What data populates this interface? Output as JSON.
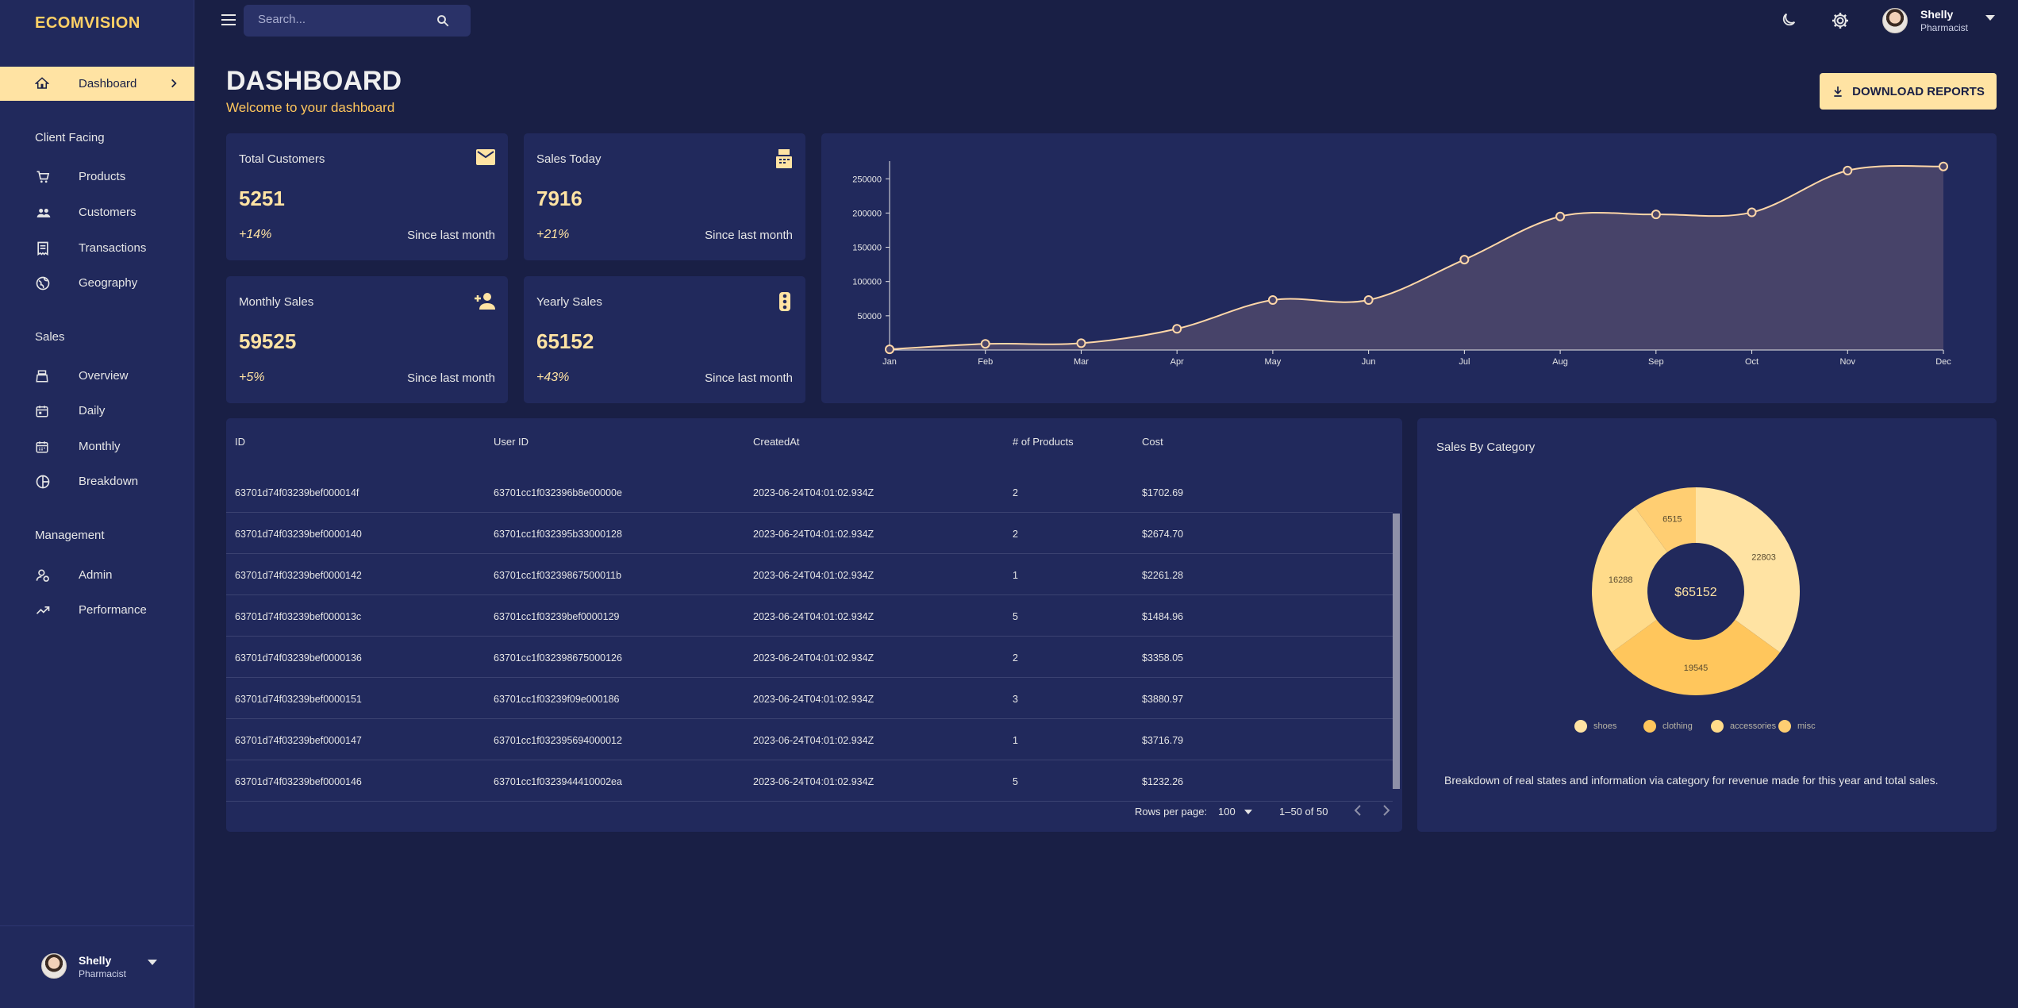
{
  "brand": "ECOMVISION",
  "sidebar": {
    "active": {
      "label": "Dashboard"
    },
    "sections": [
      {
        "title": "Client Facing",
        "items": [
          {
            "label": "Products",
            "icon": "cart-icon"
          },
          {
            "label": "Customers",
            "icon": "group-icon"
          },
          {
            "label": "Transactions",
            "icon": "receipt-icon"
          },
          {
            "label": "Geography",
            "icon": "globe-icon"
          }
        ]
      },
      {
        "title": "Sales",
        "items": [
          {
            "label": "Overview",
            "icon": "point-of-sale-icon"
          },
          {
            "label": "Daily",
            "icon": "calendar-today-icon"
          },
          {
            "label": "Monthly",
            "icon": "calendar-month-icon"
          },
          {
            "label": "Breakdown",
            "icon": "pie-chart-icon"
          }
        ]
      },
      {
        "title": "Management",
        "items": [
          {
            "label": "Admin",
            "icon": "admin-icon"
          },
          {
            "label": "Performance",
            "icon": "trending-up-icon"
          }
        ]
      }
    ],
    "user": {
      "name": "Shelly",
      "role": "Pharmacist"
    }
  },
  "topbar": {
    "search_placeholder": "Search...",
    "user": {
      "name": "Shelly",
      "role": "Pharmacist"
    }
  },
  "header": {
    "title": "DASHBOARD",
    "subtitle": "Welcome to your dashboard",
    "download_label": "DOWNLOAD REPORTS"
  },
  "stats": [
    {
      "title": "Total Customers",
      "value": "5251",
      "change": "+14%",
      "since": "Since last month",
      "icon": "email-icon"
    },
    {
      "title": "Sales Today",
      "value": "7916",
      "change": "+21%",
      "since": "Since last month",
      "icon": "point-of-sale-icon"
    },
    {
      "title": "Monthly Sales",
      "value": "59525",
      "change": "+5%",
      "since": "Since last month",
      "icon": "person-add-icon"
    },
    {
      "title": "Yearly Sales",
      "value": "65152",
      "change": "+43%",
      "since": "Since last month",
      "icon": "traffic-icon"
    }
  ],
  "colors": {
    "accent": "#ffe3a3",
    "accent_strong": "#ffc65c",
    "bg": "#191f45",
    "panel": "#21295c"
  },
  "table": {
    "columns": [
      "ID",
      "User ID",
      "CreatedAt",
      "# of Products",
      "Cost"
    ],
    "rows": [
      [
        "63701d74f03239bef000014f",
        "63701cc1f032396b8e00000e",
        "2023-06-24T04:01:02.934Z",
        "2",
        "$1702.69"
      ],
      [
        "63701d74f03239bef0000140",
        "63701cc1f032395b33000128",
        "2023-06-24T04:01:02.934Z",
        "2",
        "$2674.70"
      ],
      [
        "63701d74f03239bef0000142",
        "63701cc1f03239867500011b",
        "2023-06-24T04:01:02.934Z",
        "1",
        "$2261.28"
      ],
      [
        "63701d74f03239bef000013c",
        "63701cc1f03239bef0000129",
        "2023-06-24T04:01:02.934Z",
        "5",
        "$1484.96"
      ],
      [
        "63701d74f03239bef0000136",
        "63701cc1f032398675000126",
        "2023-06-24T04:01:02.934Z",
        "2",
        "$3358.05"
      ],
      [
        "63701d74f03239bef0000151",
        "63701cc1f03239f09e000186",
        "2023-06-24T04:01:02.934Z",
        "3",
        "$3880.97"
      ],
      [
        "63701d74f03239bef0000147",
        "63701cc1f032395694000012",
        "2023-06-24T04:01:02.934Z",
        "1",
        "$3716.79"
      ],
      [
        "63701d74f03239bef0000146",
        "63701cc1f0323944410002ea",
        "2023-06-24T04:01:02.934Z",
        "5",
        "$1232.26"
      ]
    ],
    "rows_per_page_label": "Rows per page:",
    "rows_per_page": "100",
    "range": "1–50 of 50"
  },
  "pie": {
    "title": "Sales By Category",
    "total": "$65152",
    "description": "Breakdown of real states and information via category for revenue made for this year and total sales."
  },
  "chart_data": [
    {
      "type": "area",
      "x": [
        "Jan",
        "Feb",
        "Mar",
        "Apr",
        "May",
        "Jun",
        "Jul",
        "Aug",
        "Sep",
        "Oct",
        "Nov",
        "Dec"
      ],
      "series": [
        {
          "values": [
            1000,
            9000,
            10000,
            31000,
            73000,
            73000,
            132000,
            195000,
            198000,
            201000,
            262000,
            268000
          ]
        }
      ],
      "yticks": [
        "50000",
        "100000",
        "150000",
        "200000",
        "250000"
      ],
      "ylim": [
        0,
        270000
      ],
      "grid": false
    },
    {
      "type": "pie",
      "categories": [
        "shoes",
        "clothing",
        "accessories",
        "misc"
      ],
      "values": [
        22803,
        19545,
        16288,
        6515
      ],
      "colors": [
        "#ffe3a3",
        "#ffc65c",
        "#ffdb8a",
        "#ffce72"
      ]
    }
  ]
}
